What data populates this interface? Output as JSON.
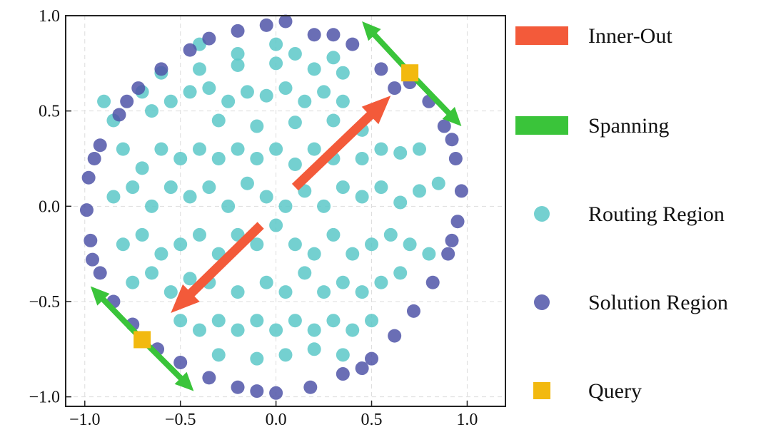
{
  "chart_data": {
    "type": "scatter",
    "xlim": [
      -1.1,
      1.2
    ],
    "ylim": [
      -1.05,
      1.0
    ],
    "x_ticks": [
      -1.0,
      -0.5,
      0.0,
      0.5,
      1.0
    ],
    "y_ticks": [
      -1.0,
      -0.5,
      0.0,
      0.5,
      1.0
    ],
    "x_tick_labels": [
      "−1.0",
      "−0.5",
      "0.0",
      "0.5",
      "1.0"
    ],
    "y_tick_labels": [
      "−1.0",
      "−0.5",
      "0.0",
      "0.5",
      "1.0"
    ],
    "grid": true,
    "legend_position": "right",
    "colors": {
      "routing": "#5cc8c8",
      "solution": "#5055a8",
      "inner_out": "#f35a3a",
      "spanning": "#3ac43a",
      "query": "#f2b90f"
    },
    "series": [
      {
        "name": "Routing Region",
        "points": [
          [
            -0.9,
            0.55
          ],
          [
            -0.85,
            0.45
          ],
          [
            -0.7,
            0.6
          ],
          [
            -0.65,
            0.5
          ],
          [
            -0.55,
            0.55
          ],
          [
            -0.45,
            0.6
          ],
          [
            -0.35,
            0.62
          ],
          [
            -0.25,
            0.55
          ],
          [
            -0.15,
            0.6
          ],
          [
            -0.05,
            0.58
          ],
          [
            0.05,
            0.62
          ],
          [
            0.15,
            0.55
          ],
          [
            0.25,
            0.6
          ],
          [
            0.35,
            0.55
          ],
          [
            -0.6,
            0.7
          ],
          [
            -0.4,
            0.72
          ],
          [
            -0.2,
            0.74
          ],
          [
            0.0,
            0.75
          ],
          [
            0.2,
            0.72
          ],
          [
            0.35,
            0.7
          ],
          [
            -0.3,
            0.45
          ],
          [
            -0.1,
            0.42
          ],
          [
            0.1,
            0.44
          ],
          [
            0.3,
            0.45
          ],
          [
            0.45,
            0.4
          ],
          [
            -0.8,
            0.3
          ],
          [
            -0.7,
            0.2
          ],
          [
            -0.6,
            0.3
          ],
          [
            -0.5,
            0.25
          ],
          [
            -0.4,
            0.3
          ],
          [
            -0.3,
            0.25
          ],
          [
            -0.2,
            0.3
          ],
          [
            -0.1,
            0.25
          ],
          [
            0.0,
            0.3
          ],
          [
            0.1,
            0.22
          ],
          [
            0.2,
            0.3
          ],
          [
            0.3,
            0.25
          ],
          [
            0.45,
            0.25
          ],
          [
            0.55,
            0.3
          ],
          [
            0.65,
            0.28
          ],
          [
            0.75,
            0.3
          ],
          [
            -0.85,
            0.05
          ],
          [
            -0.75,
            0.1
          ],
          [
            -0.65,
            0.0
          ],
          [
            -0.55,
            0.1
          ],
          [
            -0.45,
            0.05
          ],
          [
            -0.35,
            0.1
          ],
          [
            -0.25,
            0.0
          ],
          [
            -0.15,
            0.12
          ],
          [
            -0.05,
            0.05
          ],
          [
            0.05,
            0.0
          ],
          [
            0.15,
            0.08
          ],
          [
            0.25,
            0.0
          ],
          [
            0.35,
            0.1
          ],
          [
            0.45,
            0.05
          ],
          [
            0.55,
            0.1
          ],
          [
            0.65,
            0.02
          ],
          [
            0.75,
            0.08
          ],
          [
            0.85,
            0.12
          ],
          [
            -0.8,
            -0.2
          ],
          [
            -0.7,
            -0.15
          ],
          [
            -0.6,
            -0.25
          ],
          [
            -0.5,
            -0.2
          ],
          [
            -0.4,
            -0.15
          ],
          [
            -0.3,
            -0.25
          ],
          [
            -0.2,
            -0.15
          ],
          [
            -0.1,
            -0.2
          ],
          [
            0.0,
            -0.1
          ],
          [
            0.1,
            -0.2
          ],
          [
            0.2,
            -0.25
          ],
          [
            0.3,
            -0.15
          ],
          [
            0.4,
            -0.25
          ],
          [
            0.5,
            -0.2
          ],
          [
            0.6,
            -0.15
          ],
          [
            0.7,
            -0.2
          ],
          [
            0.8,
            -0.25
          ],
          [
            -0.75,
            -0.4
          ],
          [
            -0.65,
            -0.35
          ],
          [
            -0.55,
            -0.45
          ],
          [
            -0.45,
            -0.38
          ],
          [
            -0.35,
            -0.4
          ],
          [
            -0.2,
            -0.45
          ],
          [
            -0.05,
            -0.4
          ],
          [
            0.05,
            -0.45
          ],
          [
            0.15,
            -0.35
          ],
          [
            0.25,
            -0.45
          ],
          [
            0.35,
            -0.4
          ],
          [
            0.45,
            -0.45
          ],
          [
            0.55,
            -0.4
          ],
          [
            0.65,
            -0.35
          ],
          [
            -0.5,
            -0.6
          ],
          [
            -0.4,
            -0.65
          ],
          [
            -0.3,
            -0.6
          ],
          [
            -0.2,
            -0.65
          ],
          [
            -0.1,
            -0.6
          ],
          [
            0.0,
            -0.65
          ],
          [
            0.1,
            -0.6
          ],
          [
            0.2,
            -0.65
          ],
          [
            0.3,
            -0.6
          ],
          [
            0.4,
            -0.65
          ],
          [
            0.5,
            -0.6
          ],
          [
            -0.3,
            -0.78
          ],
          [
            -0.1,
            -0.8
          ],
          [
            0.05,
            -0.78
          ],
          [
            0.2,
            -0.75
          ],
          [
            0.35,
            -0.78
          ],
          [
            -0.2,
            0.8
          ],
          [
            0.1,
            0.8
          ],
          [
            0.3,
            0.78
          ],
          [
            -0.4,
            0.85
          ],
          [
            0.0,
            0.85
          ]
        ]
      },
      {
        "name": "Solution Region",
        "points": [
          [
            -0.2,
            0.92
          ],
          [
            0.05,
            0.97
          ],
          [
            0.2,
            0.9
          ],
          [
            0.4,
            0.85
          ],
          [
            0.55,
            0.72
          ],
          [
            0.62,
            0.62
          ],
          [
            -0.45,
            0.82
          ],
          [
            -0.6,
            0.72
          ],
          [
            -0.72,
            0.62
          ],
          [
            -0.82,
            0.48
          ],
          [
            -0.92,
            0.32
          ],
          [
            -0.98,
            0.15
          ],
          [
            -0.99,
            -0.02
          ],
          [
            -0.97,
            -0.18
          ],
          [
            -0.92,
            -0.35
          ],
          [
            -0.85,
            -0.5
          ],
          [
            -0.75,
            -0.62
          ],
          [
            -0.62,
            -0.75
          ],
          [
            -0.5,
            -0.82
          ],
          [
            -0.35,
            -0.9
          ],
          [
            -0.2,
            -0.95
          ],
          [
            0.0,
            -0.98
          ],
          [
            0.18,
            -0.95
          ],
          [
            0.35,
            -0.88
          ],
          [
            0.5,
            -0.8
          ],
          [
            0.62,
            -0.68
          ],
          [
            0.72,
            -0.55
          ],
          [
            0.82,
            -0.4
          ],
          [
            0.9,
            -0.25
          ],
          [
            0.95,
            -0.08
          ],
          [
            0.97,
            0.08
          ],
          [
            0.94,
            0.25
          ],
          [
            0.88,
            0.42
          ],
          [
            0.8,
            0.55
          ],
          [
            0.7,
            0.65
          ],
          [
            -0.05,
            0.95
          ],
          [
            0.3,
            0.9
          ],
          [
            -0.35,
            0.88
          ],
          [
            -0.78,
            0.55
          ],
          [
            -0.95,
            0.25
          ],
          [
            -0.96,
            -0.28
          ],
          [
            -0.7,
            -0.7
          ],
          [
            -0.1,
            -0.97
          ],
          [
            0.45,
            -0.85
          ],
          [
            0.92,
            -0.18
          ],
          [
            0.92,
            0.35
          ]
        ]
      }
    ],
    "query_points": [
      [
        0.7,
        0.7
      ],
      [
        -0.7,
        -0.7
      ]
    ],
    "arrows": [
      {
        "name": "Inner-Out",
        "from": [
          0.1,
          0.1
        ],
        "to": [
          0.6,
          0.58
        ]
      },
      {
        "name": "Inner-Out",
        "from": [
          -0.08,
          -0.1
        ],
        "to": [
          -0.55,
          -0.56
        ]
      },
      {
        "name": "Spanning",
        "from": [
          0.7,
          0.7
        ],
        "to": [
          0.45,
          0.97
        ]
      },
      {
        "name": "Spanning",
        "from": [
          0.7,
          0.7
        ],
        "to": [
          0.97,
          0.42
        ]
      },
      {
        "name": "Spanning",
        "from": [
          -0.7,
          -0.7
        ],
        "to": [
          -0.97,
          -0.42
        ]
      },
      {
        "name": "Spanning",
        "from": [
          -0.7,
          -0.7
        ],
        "to": [
          -0.43,
          -0.97
        ]
      }
    ],
    "legend": [
      {
        "label": "Inner-Out",
        "marker": "arrow",
        "color": "#f35a3a"
      },
      {
        "label": "Spanning",
        "marker": "arrow",
        "color": "#3ac43a"
      },
      {
        "label": "Routing Region",
        "marker": "circle",
        "color": "#5cc8c8"
      },
      {
        "label": "Solution Region",
        "marker": "circle",
        "color": "#5055a8"
      },
      {
        "label": "Query",
        "marker": "square",
        "color": "#f2b90f"
      }
    ]
  }
}
